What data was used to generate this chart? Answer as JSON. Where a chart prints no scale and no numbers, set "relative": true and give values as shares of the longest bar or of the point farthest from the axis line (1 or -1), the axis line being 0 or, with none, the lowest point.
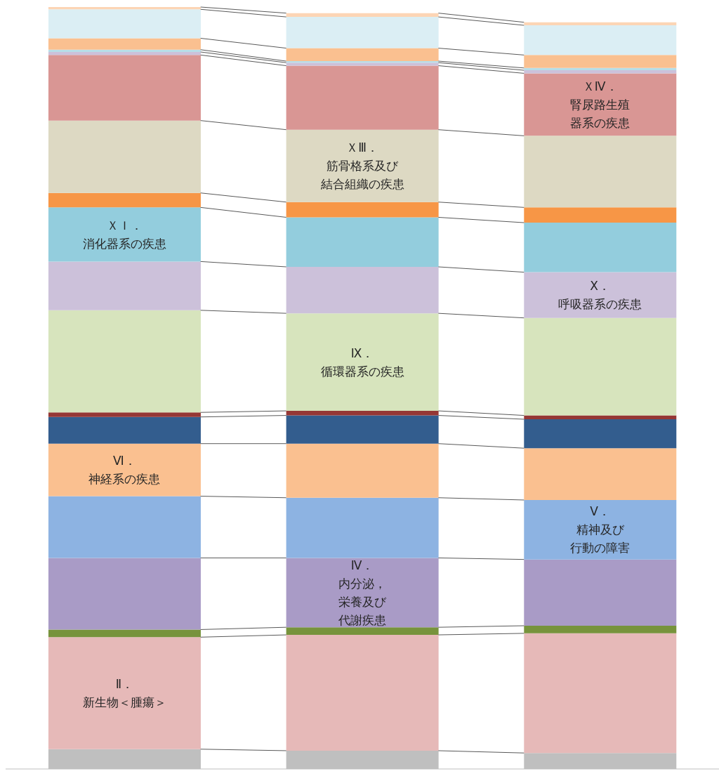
{
  "chart_data": {
    "type": "bar",
    "stacked": true,
    "relative": true,
    "categories": [
      null,
      null,
      null
    ],
    "series": [
      {
        "color": "#bfbfbf",
        "values": [
          0.026,
          0.024,
          0.021
        ]
      },
      {
        "name": "Ⅱ．新生物＜腫瘍＞",
        "color": "#e6b9b8",
        "values": [
          0.147,
          0.152,
          0.157
        ]
      },
      {
        "color": "#77933c",
        "values": [
          0.01,
          0.01,
          0.01
        ]
      },
      {
        "name": "Ⅳ．内分泌，栄養及び代謝疾患",
        "color": "#a99bc6",
        "values": [
          0.094,
          0.091,
          0.087
        ]
      },
      {
        "name": "Ⅴ．精神及び行動の障害",
        "color": "#8db3e2",
        "values": [
          0.081,
          0.079,
          0.078
        ]
      },
      {
        "name": "Ⅵ．神経系の疾患",
        "color": "#fac090",
        "values": [
          0.069,
          0.071,
          0.068
        ]
      },
      {
        "color": "#335d8e",
        "values": [
          0.035,
          0.037,
          0.038
        ]
      },
      {
        "color": "#953735",
        "values": [
          0.006,
          0.006,
          0.005
        ]
      },
      {
        "name": "Ⅸ．循環器系の疾患",
        "color": "#d7e4bd",
        "values": [
          0.134,
          0.128,
          0.128
        ]
      },
      {
        "name": "Ⅹ．呼吸器系の疾患",
        "color": "#ccc1da",
        "values": [
          0.064,
          0.061,
          0.06
        ]
      },
      {
        "name": "ＸＩ．消化器系の疾患",
        "color": "#93cddd",
        "values": [
          0.071,
          0.065,
          0.065
        ]
      },
      {
        "color": "#f79646",
        "values": [
          0.019,
          0.02,
          0.02
        ]
      },
      {
        "name": "ＸⅢ．筋骨格系及び結合組織の疾患",
        "color": "#ddd9c3",
        "values": [
          0.095,
          0.095,
          0.094
        ]
      },
      {
        "name": "ＸⅣ．腎尿路生殖器系の疾患",
        "color": "#d99694",
        "values": [
          0.086,
          0.084,
          0.082
        ]
      },
      {
        "color": "#ccc1da",
        "values": [
          0.004,
          0.004,
          0.004
        ]
      },
      {
        "color": "#b7dee8",
        "values": [
          0.003,
          0.002,
          0.003
        ]
      },
      {
        "color": "#fac090",
        "values": [
          0.015,
          0.017,
          0.017
        ]
      },
      {
        "color": "#dbeef4",
        "values": [
          0.038,
          0.041,
          0.039
        ]
      },
      {
        "color": "#fcd5b5",
        "values": [
          0.003,
          0.005,
          0.004
        ]
      }
    ]
  }
}
